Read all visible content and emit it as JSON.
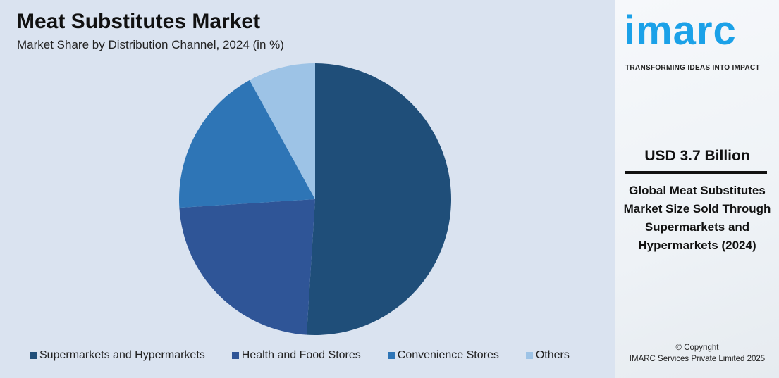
{
  "header": {
    "title": "Meat Substitutes Market",
    "subtitle": "Market Share by Distribution Channel, 2024 (in %)"
  },
  "chart_data": {
    "type": "pie",
    "title": "Meat Substitutes Market",
    "subtitle": "Market Share by Distribution Channel, 2024 (in %)",
    "categories": [
      "Supermarkets and Hypermarkets",
      "Health and Food Stores",
      "Convenience Stores",
      "Others"
    ],
    "values": [
      51,
      23,
      18,
      8
    ],
    "colors": [
      "#1f4e79",
      "#2f5597",
      "#2e75b6",
      "#9dc3e6"
    ],
    "legend_position": "bottom"
  },
  "sidebar": {
    "logo": "imarc",
    "tagline": "TRANSFORMING IDEAS INTO IMPACT",
    "value": "USD 3.7 Billion",
    "description": "Global Meat Substitutes Market Size Sold Through Supermarkets and Hypermarkets (2024)",
    "copyright": "© Copyright",
    "company": "IMARC Services Private Limited 2025"
  }
}
